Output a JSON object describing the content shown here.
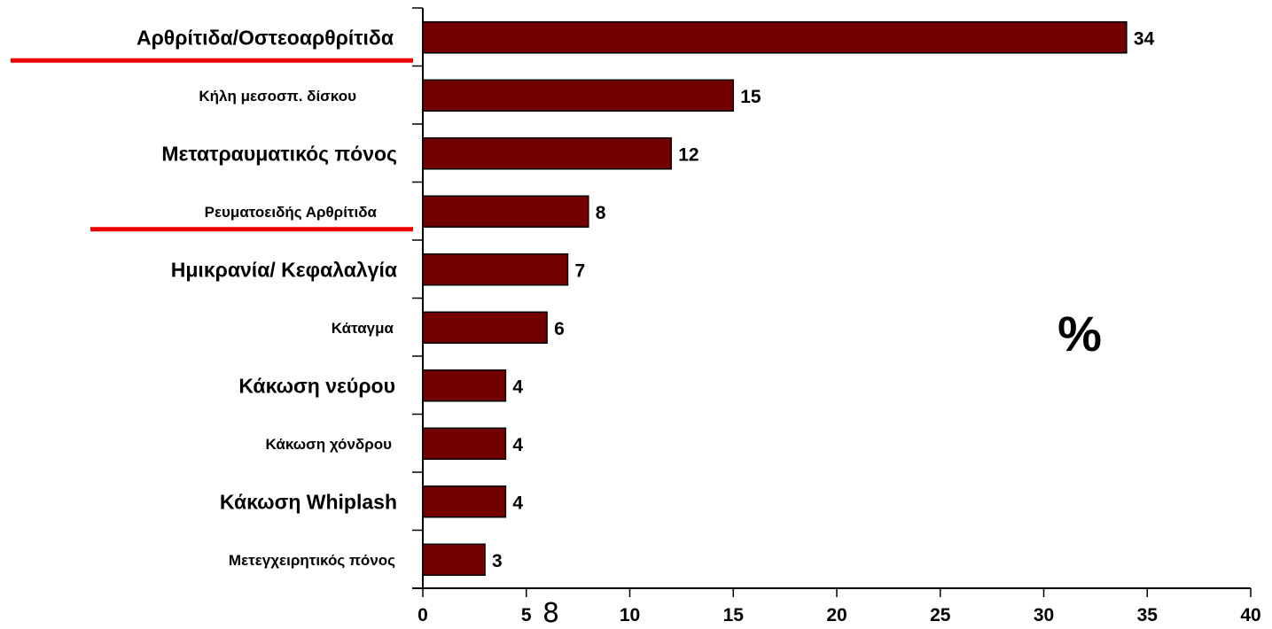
{
  "chart_data": {
    "type": "bar",
    "orientation": "horizontal",
    "categories": [
      "Αρθρίτιδα/Οστεοαρθρίτιδα",
      "Κήλη μεσοσπ. δίσκου",
      "Μετατραυματικός πόνος",
      "Ρευματοειδής Αρθρίτιδα",
      "Ημικρανία/ Κεφαλαλγία",
      "Κάταγμα",
      "Κάκωση νεύρου",
      "Κάκωση χόνδρου",
      "Κάκωση Whiplash",
      "Μετεγχειρητικός πόνος"
    ],
    "values": [
      34,
      15,
      12,
      8,
      7,
      6,
      4,
      4,
      4,
      3
    ],
    "value_labels": [
      "34",
      "15",
      "12",
      "8",
      "7",
      "6",
      "4",
      "4",
      "4",
      "3"
    ],
    "highlighted_categories": [
      "Αρθρίτιδα/Οστεοαρθρίτιδα",
      "Ρευματοειδής Αρθρίτιδα"
    ],
    "xlim": [
      0,
      40
    ],
    "x_ticks": [
      "0",
      "5",
      "10",
      "15",
      "20",
      "25",
      "30",
      "35",
      "40"
    ],
    "unit_label": "%",
    "grid": false,
    "legend": "none"
  },
  "page_number": "8",
  "colors": {
    "bar_fill": "#730000",
    "bar_stroke": "#000000",
    "highlight_underline": "#ee0000",
    "axis": "#000000",
    "text": "#000000",
    "background": "#ffffff"
  }
}
